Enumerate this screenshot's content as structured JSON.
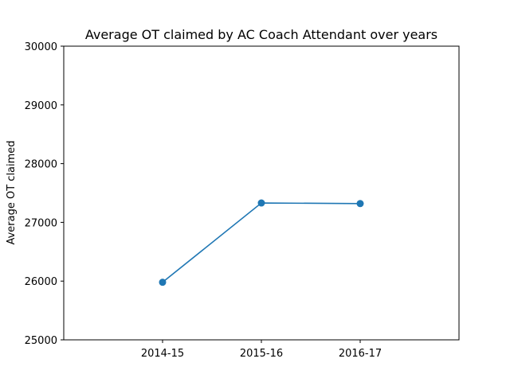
{
  "chart_data": {
    "type": "line",
    "title": "Average OT claimed by AC Coach Attendant over years",
    "xlabel": "",
    "ylabel": "Average OT claimed",
    "categories": [
      "2014-15",
      "2015-16",
      "2016-17"
    ],
    "series": [
      {
        "values": [
          25980,
          27330,
          27320
        ],
        "color": "#1f77b4",
        "marker": "circle"
      }
    ],
    "ylim": [
      25000,
      30000
    ],
    "yticks": [
      25000,
      26000,
      27000,
      28000,
      29000,
      30000
    ],
    "grid": false,
    "legend": "none"
  }
}
